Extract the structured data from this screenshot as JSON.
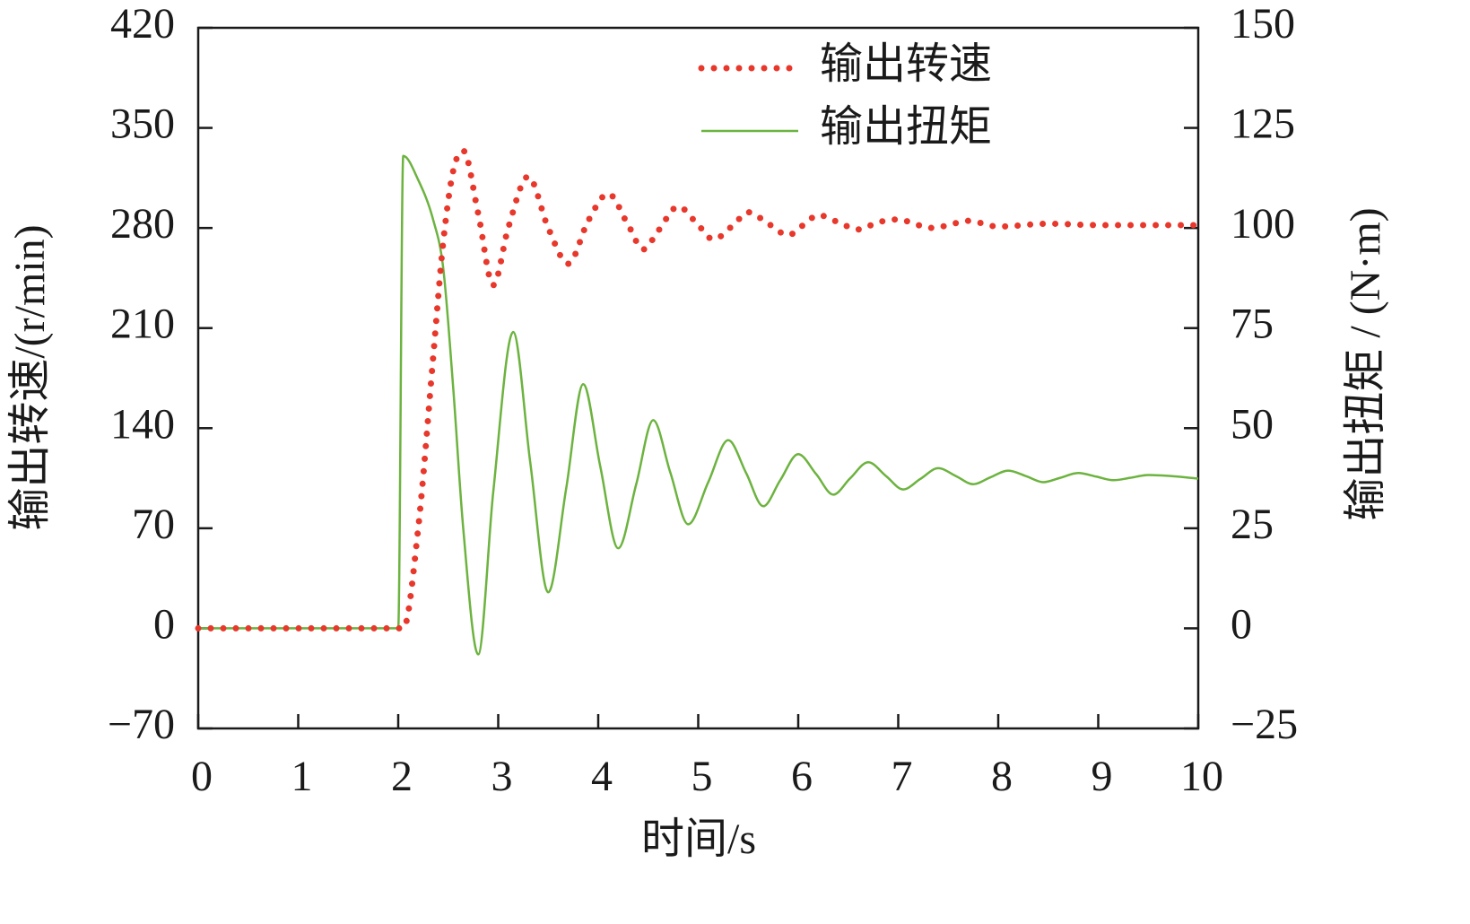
{
  "chart_data": {
    "type": "line",
    "xlabel": "时间/s",
    "ylabel": "输出转速/(r/min)",
    "y2label": "输出扭矩 / (N·m)",
    "xlim": [
      0,
      10
    ],
    "xticks": [
      0,
      1,
      2,
      3,
      4,
      5,
      6,
      7,
      8,
      9,
      10
    ],
    "ylim": [
      -70,
      420
    ],
    "yticks": [
      {
        "value": -70,
        "label": "−70"
      },
      0,
      70,
      140,
      210,
      280,
      350,
      420
    ],
    "y2lim": [
      -25,
      150
    ],
    "y2ticks": [
      {
        "value": -25,
        "label": "−25"
      },
      0,
      25,
      50,
      75,
      100,
      125,
      150
    ],
    "legend": "upper right",
    "series": [
      {
        "name": "输出转速",
        "color": "#e8372b",
        "style": "dotted",
        "x": [
          0,
          1,
          2,
          2.05,
          2.2,
          2.35,
          2.45,
          2.55,
          2.65,
          2.8,
          2.95,
          3.1,
          3.3,
          3.5,
          3.7,
          3.9,
          4.1,
          4.3,
          4.45,
          4.6,
          4.8,
          5.0,
          5.15,
          5.35,
          5.5,
          5.7,
          5.9,
          6.05,
          6.2,
          6.4,
          6.6,
          6.8,
          7.0,
          7.2,
          7.35,
          7.55,
          7.7,
          8.0,
          8.5,
          9,
          9.5,
          10
        ],
        "values": [
          0,
          0,
          0,
          0,
          70,
          190,
          270,
          320,
          334,
          290,
          240,
          280,
          316,
          280,
          255,
          285,
          304,
          282,
          265,
          278,
          295,
          282,
          272,
          282,
          291,
          283,
          275,
          282,
          289,
          284,
          279,
          284,
          286,
          282,
          280,
          283,
          285,
          281,
          283,
          282,
          282,
          282
        ]
      },
      {
        "name": "输出扭矩",
        "color": "#6cb33f",
        "style": "solid",
        "axis": "y2",
        "x": [
          0,
          1,
          2,
          2.05,
          2.2,
          2.35,
          2.45,
          2.55,
          2.65,
          2.8,
          2.95,
          3.15,
          3.32,
          3.5,
          3.68,
          3.85,
          4.02,
          4.2,
          4.38,
          4.55,
          4.72,
          4.9,
          5.1,
          5.3,
          5.48,
          5.65,
          5.82,
          6.0,
          6.18,
          6.35,
          6.52,
          6.7,
          6.88,
          7.05,
          7.22,
          7.4,
          7.58,
          7.75,
          7.92,
          8.1,
          8.28,
          8.45,
          8.62,
          8.8,
          8.98,
          9.15,
          9.32,
          9.5,
          9.75,
          10
        ],
        "values": [
          0,
          0,
          0,
          118,
          112,
          102,
          90,
          60,
          25,
          -6.5,
          34,
          74,
          41.5,
          9,
          35,
          61,
          40.5,
          20,
          36,
          52,
          39,
          26,
          36.5,
          47,
          38.75,
          30.5,
          37,
          43.5,
          38.5,
          33.4,
          37.5,
          41.5,
          38,
          34.7,
          37.3,
          40,
          38,
          36,
          37.7,
          39.4,
          38,
          36.5,
          37.6,
          38.8,
          37.9,
          37,
          37.6,
          38.3,
          38,
          37.4
        ]
      }
    ]
  }
}
